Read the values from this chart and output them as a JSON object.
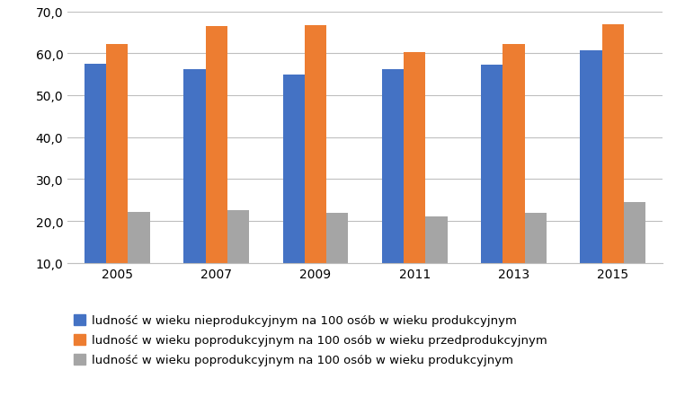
{
  "years": [
    "2005",
    "2007",
    "2009",
    "2011",
    "2013",
    "2015"
  ],
  "series": [
    {
      "label": "ludność w wieku nieprodukcyjnym na 100 osób w wieku produkcyjnym",
      "color": "#4472C4",
      "values": [
        57.5,
        56.1,
        54.9,
        56.1,
        57.2,
        60.8
      ]
    },
    {
      "label": "ludność w wieku poprodukcyjnym na 100 osób w wieku przedprodukcyjnym",
      "color": "#ED7D31",
      "values": [
        62.2,
        66.4,
        66.6,
        60.2,
        62.3,
        67.0
      ]
    },
    {
      "label": "ludność w wieku poprodukcyjnym na 100 osób w wieku produkcyjnym",
      "color": "#A5A5A5",
      "values": [
        22.2,
        22.6,
        22.0,
        21.0,
        22.0,
        24.5
      ]
    }
  ],
  "ylim": [
    10.0,
    70.0
  ],
  "yticks": [
    10.0,
    20.0,
    30.0,
    40.0,
    50.0,
    60.0,
    70.0
  ],
  "background_color": "#FFFFFF",
  "grid_color": "#BFBFBF",
  "bar_width": 0.22,
  "legend_fontsize": 9.5
}
